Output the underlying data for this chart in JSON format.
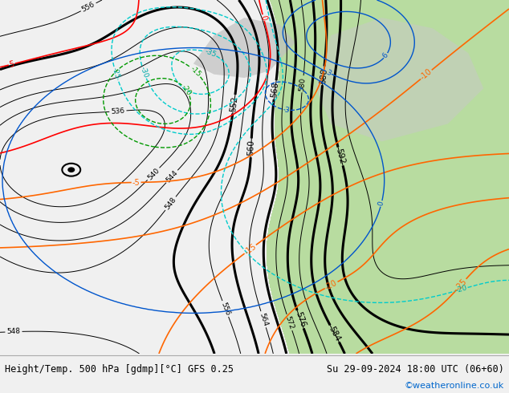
{
  "bottom_left_text": "Height/Temp. 500 hPa [gdmp][°C] GFS 0.25",
  "bottom_right_text": "Su 29-09-2024 18:00 UTC (06+60)",
  "bottom_credit": "©weatheronline.co.uk",
  "bg_light": "#dcdcdc",
  "bg_green": "#b8dca0",
  "footer_bg": "#f0f0f0"
}
